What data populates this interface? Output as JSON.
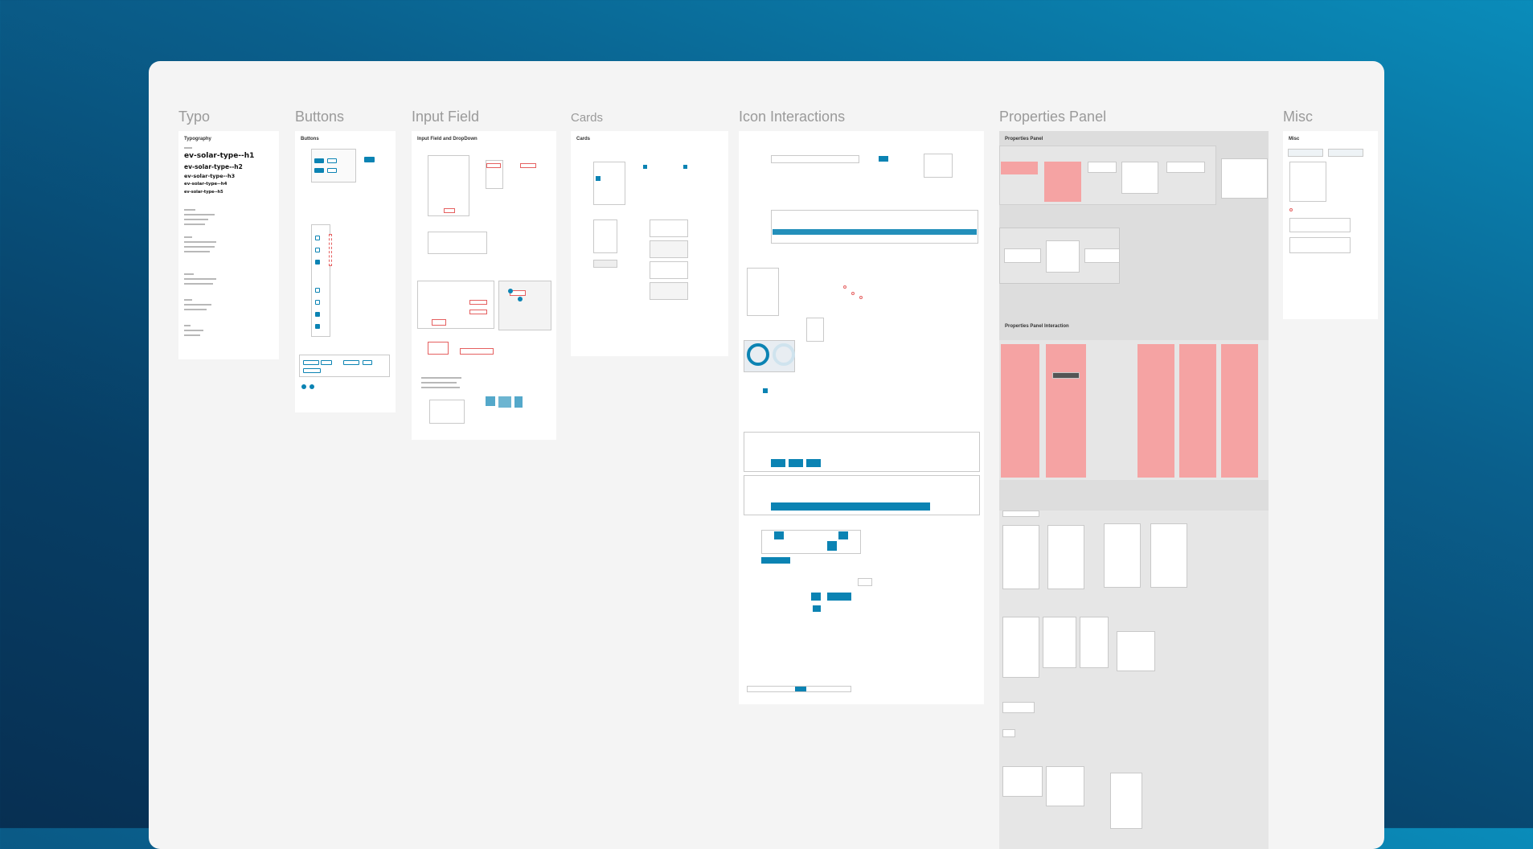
{
  "frames": [
    {
      "title": "Typo",
      "subtitle": "Typography"
    },
    {
      "title": "Buttons",
      "subtitle": "Buttons"
    },
    {
      "title": "Input Field",
      "subtitle": "Input Field and DropDown"
    },
    {
      "title": "Cards",
      "subtitle": "Cards"
    },
    {
      "title": "Icon Interactions"
    },
    {
      "title": "Properties Panel",
      "subtitle": "Properties Panel",
      "subtitle2": "Properties Panel Interaction"
    },
    {
      "title": "Misc",
      "subtitle": "Misc"
    }
  ],
  "typography": {
    "styles": [
      "ev-solar-type--h1",
      "ev-solar-type--h2",
      "ev-solar-type--h3",
      "ev-solar-type--h4",
      "ev-solar-type--h5"
    ]
  },
  "colors": {
    "accent": "#0b83b3",
    "highlight_red": "#f5a3a3",
    "canvas": "#f4f4f4",
    "background_dark": "#072f52",
    "background_light": "#0a8cba"
  }
}
